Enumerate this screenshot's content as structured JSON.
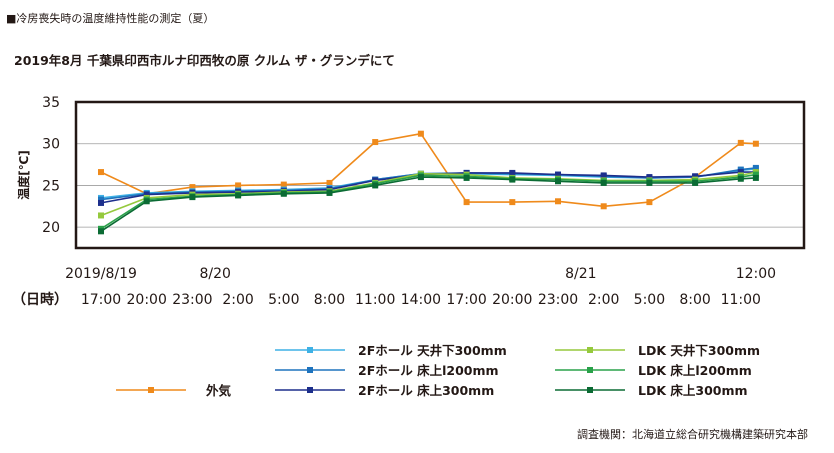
{
  "header_note": "■冷房喪失時の温度維持性能の測定（夏）",
  "source_note": "調査機関：北海道立総合研究機構建築研究本部",
  "chart_data": {
    "type": "line",
    "title": "2019年8月 千葉県印西市ルナ印西牧の原 クルム ザ・グランデにて",
    "ylabel": "温度[℃]",
    "ylim": [
      17.5,
      35
    ],
    "y_ticks": [
      20,
      25,
      30,
      35
    ],
    "grid": true,
    "x_time_label": "（日時）",
    "x_labels": [
      "17:00",
      "20:00",
      "23:00",
      "2:00",
      "5:00",
      "8:00",
      "11:00",
      "14:00",
      "17:00",
      "20:00",
      "23:00",
      "2:00",
      "5:00",
      "8:00",
      "11:00"
    ],
    "date_labels": [
      {
        "label": "2019/8/19",
        "x_index": 0
      },
      {
        "label": "8/20",
        "x_index": 2.5
      },
      {
        "label": "8/21",
        "x_index": 10.5
      },
      {
        "label": "12:00",
        "x_index": 14.33
      }
    ],
    "series": [
      {
        "name": "外気",
        "color": "#ef8a1b",
        "x": [
          0,
          1,
          2,
          3,
          4,
          5,
          6,
          7,
          8,
          9,
          10,
          11,
          12,
          13,
          14,
          14.33
        ],
        "y": [
          26.6,
          24.0,
          24.8,
          25.0,
          25.1,
          25.3,
          30.2,
          31.2,
          23.0,
          23.0,
          23.1,
          22.5,
          23.0,
          26.0,
          30.1,
          30.0
        ]
      },
      {
        "name": "2Fホール 天井下300mm",
        "color": "#3fb1e5",
        "x": [
          0,
          1,
          2,
          3,
          4,
          5,
          6,
          7,
          8,
          9,
          10,
          11,
          12,
          13,
          14,
          14.33
        ],
        "y": [
          23.5,
          24.1,
          24.3,
          24.4,
          24.5,
          24.7,
          25.7,
          26.4,
          26.4,
          26.3,
          26.2,
          26.0,
          25.9,
          26.0,
          26.8,
          27.0
        ]
      },
      {
        "name": "2Fホール 床上l200mm",
        "color": "#1f74be",
        "x": [
          0,
          1,
          2,
          3,
          4,
          5,
          6,
          7,
          8,
          9,
          10,
          11,
          12,
          13,
          14,
          14.33
        ],
        "y": [
          23.3,
          24.0,
          24.2,
          24.3,
          24.4,
          24.6,
          25.7,
          26.4,
          26.5,
          26.4,
          26.3,
          26.1,
          25.9,
          26.0,
          26.9,
          27.1
        ]
      },
      {
        "name": "2Fホール 床上300mm",
        "color": "#1d2f8c",
        "x": [
          0,
          1,
          2,
          3,
          4,
          5,
          6,
          7,
          8,
          9,
          10,
          11,
          12,
          13,
          14,
          14.33
        ],
        "y": [
          22.9,
          23.9,
          24.1,
          24.2,
          24.3,
          24.5,
          25.6,
          26.3,
          26.5,
          26.5,
          26.3,
          26.2,
          26.0,
          26.1,
          26.6,
          26.6
        ]
      },
      {
        "name": "LDK 天井下300mm",
        "color": "#95c93d",
        "x": [
          0,
          1,
          2,
          3,
          4,
          5,
          6,
          7,
          8,
          9,
          10,
          11,
          12,
          13,
          14,
          14.33
        ],
        "y": [
          21.4,
          23.5,
          23.9,
          24.0,
          24.2,
          24.3,
          25.3,
          26.4,
          26.3,
          25.9,
          25.8,
          25.6,
          25.6,
          25.7,
          26.2,
          26.6
        ]
      },
      {
        "name": "LDK 床上l200mm",
        "color": "#2aa24a",
        "x": [
          0,
          1,
          2,
          3,
          4,
          5,
          6,
          7,
          8,
          9,
          10,
          11,
          12,
          13,
          14,
          14.33
        ],
        "y": [
          19.8,
          23.3,
          23.7,
          23.9,
          24.1,
          24.2,
          25.2,
          26.2,
          26.1,
          25.8,
          25.7,
          25.5,
          25.5,
          25.5,
          26.0,
          26.3
        ]
      },
      {
        "name": "LDK 床上300mm",
        "color": "#0b6b34",
        "x": [
          0,
          1,
          2,
          3,
          4,
          5,
          6,
          7,
          8,
          9,
          10,
          11,
          12,
          13,
          14,
          14.33
        ],
        "y": [
          19.5,
          23.1,
          23.6,
          23.8,
          24.0,
          24.1,
          25.0,
          26.0,
          25.9,
          25.7,
          25.5,
          25.3,
          25.3,
          25.3,
          25.8,
          25.9
        ]
      }
    ],
    "legend": {
      "placement": "bottom",
      "items": [
        {
          "series_index": 1,
          "label": "2Fホール 天井下300mm"
        },
        {
          "series_index": 2,
          "label": "2Fホール 床上l200mm"
        },
        {
          "series_index": 3,
          "label": "2Fホール 床上300mm"
        },
        {
          "series_index": 4,
          "label": "LDK 天井下300mm"
        },
        {
          "series_index": 5,
          "label": "LDK 床上l200mm"
        },
        {
          "series_index": 6,
          "label": "LDK 床上300mm"
        },
        {
          "series_index": 0,
          "label": "外気"
        }
      ]
    }
  }
}
